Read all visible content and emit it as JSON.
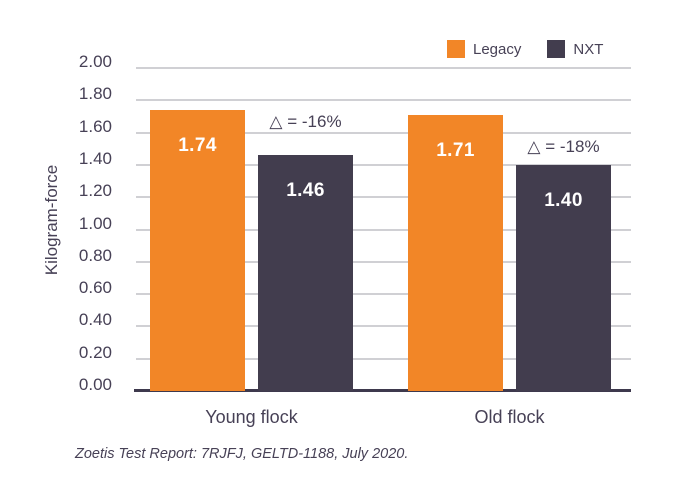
{
  "chart_data": {
    "type": "bar",
    "title": "",
    "xlabel": "",
    "ylabel": "Kilogram-force",
    "categories": [
      "Young flock",
      "Old flock"
    ],
    "series": [
      {
        "name": "Legacy",
        "color": "#F28627",
        "values": [
          1.74,
          1.71
        ],
        "value_labels": [
          "1.74",
          "1.71"
        ]
      },
      {
        "name": "NXT",
        "color": "#423D4E",
        "values": [
          1.46,
          1.4
        ],
        "value_labels": [
          "1.46",
          "1.40"
        ]
      }
    ],
    "annotations": [
      {
        "text": "△ = -16%",
        "category": "Young flock"
      },
      {
        "text": "△ = -18%",
        "category": "Old flock"
      }
    ],
    "ylim": [
      0,
      2
    ],
    "ytick_step": 0.2,
    "yticks": [
      "2.00",
      "1.80",
      "1.60",
      "1.40",
      "1.20",
      "1.00",
      "0.80",
      "0.60",
      "0.40",
      "0.20",
      "0.00"
    ],
    "grid": "horizontal",
    "legend_position": "top-right"
  },
  "footer": {
    "source_note": "Zoetis Test Report: 7RJFJ, GELTD-1188, July 2020."
  },
  "colors": {
    "legacy": "#F28627",
    "nxt": "#423D4E",
    "text": "#474156",
    "gridline": "#D0D0D4",
    "axis_line": "#3E394D",
    "bar_label": "#FFFFFF",
    "background": "#FFFFFF"
  }
}
